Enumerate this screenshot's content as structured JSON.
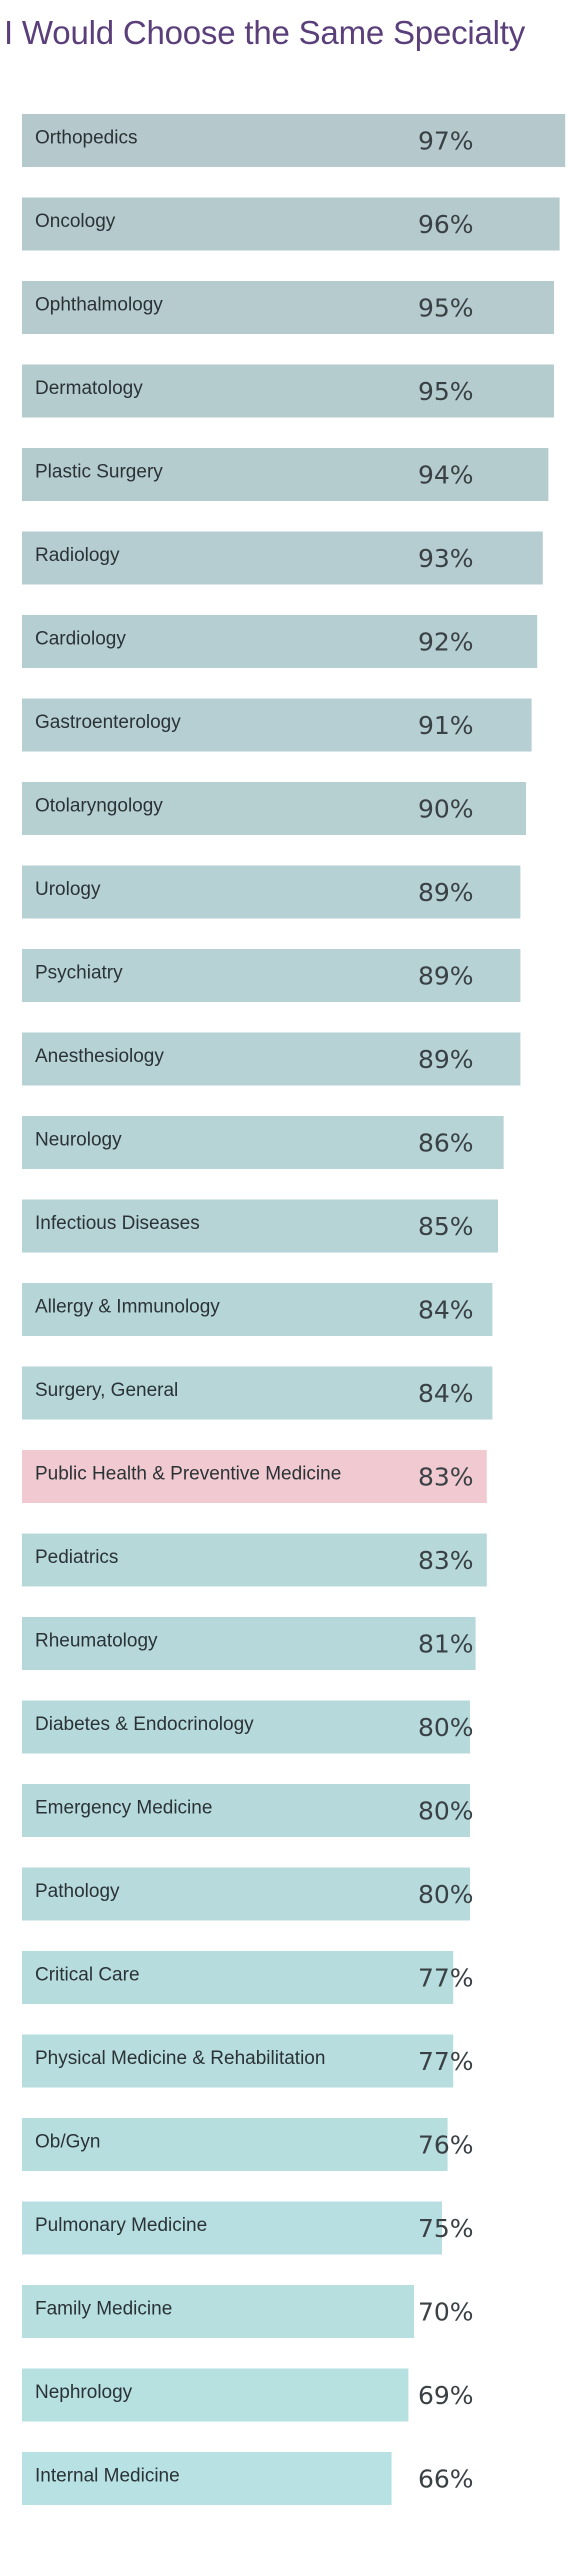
{
  "chart_data": {
    "type": "bar",
    "orientation": "horizontal",
    "title": "I Would Choose the Same Specialty",
    "xlabel": "",
    "ylabel": "",
    "xlim": [
      0,
      100
    ],
    "grid": false,
    "legend": "none",
    "value_suffix": "%",
    "colors": {
      "title": "#5a3f7a",
      "bar_top": "#b5c9cc",
      "bar_bottom": "#b7e1e2",
      "highlight": "#f0c9d1",
      "highlight_text": "#d24a72",
      "label_text": "#2a3236",
      "value_text": "#3a4145"
    },
    "highlight_category": "Public Health & Preventive Medicine",
    "categories": [
      "Orthopedics",
      "Oncology",
      "Ophthalmology",
      "Dermatology",
      "Plastic Surgery",
      "Radiology",
      "Cardiology",
      "Gastroenterology",
      "Otolaryngology",
      "Urology",
      "Psychiatry",
      "Anesthesiology",
      "Neurology",
      "Infectious Diseases",
      "Allergy & Immunology",
      "Surgery, General",
      "Public Health & Preventive Medicine",
      "Pediatrics",
      "Rheumatology",
      "Diabetes & Endocrinology",
      "Emergency Medicine",
      "Pathology",
      "Critical Care",
      "Physical Medicine & Rehabilitation",
      "Ob/Gyn",
      "Pulmonary Medicine",
      "Family Medicine",
      "Nephrology",
      "Internal Medicine"
    ],
    "values": [
      97,
      96,
      95,
      95,
      94,
      93,
      92,
      91,
      90,
      89,
      89,
      89,
      86,
      85,
      84,
      84,
      83,
      83,
      81,
      80,
      80,
      80,
      77,
      77,
      76,
      75,
      70,
      69,
      66
    ]
  }
}
